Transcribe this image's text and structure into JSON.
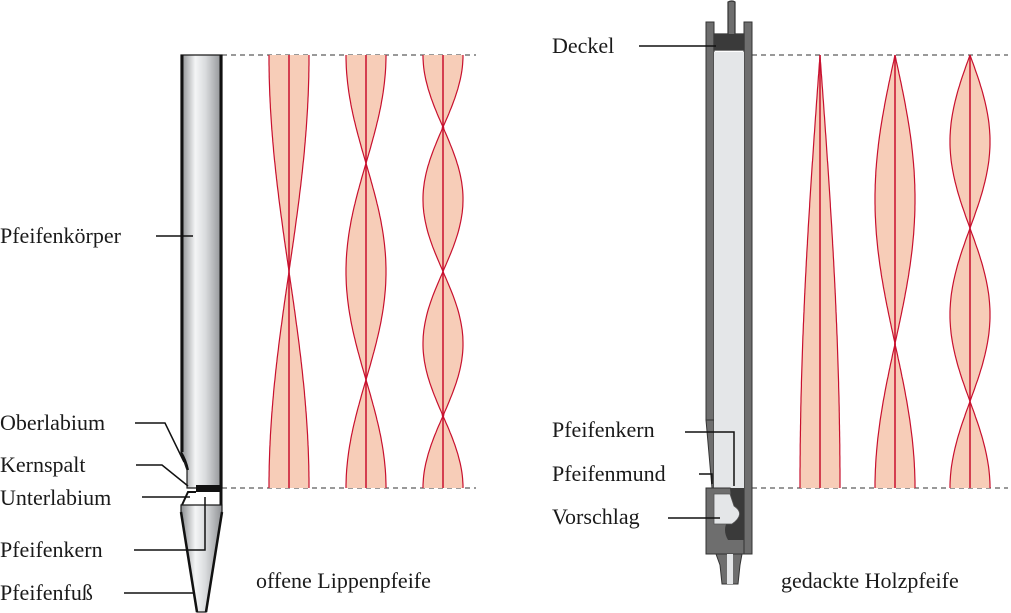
{
  "left_diagram": {
    "caption": "offene Lippenpfeife",
    "labels": {
      "body": "Pfeifenkörper",
      "upper_lip": "Oberlabium",
      "flue": "Kernspalt",
      "lower_lip": "Unterlabium",
      "languid": "Pfeifenkern",
      "foot": "Pfeifenfuß"
    }
  },
  "right_diagram": {
    "caption": "gedackte Holzpfeife",
    "labels": {
      "stopper": "Deckel",
      "block": "Pfeifenkern",
      "mouth": "Pfeifenmund",
      "cap": "Vorschlag"
    }
  },
  "colors": {
    "wave_line": "#c8102e",
    "wave_fill": "#f7cdb8",
    "pipe_wood": "#6e6e6e",
    "pipe_inner": "#e4e6e8",
    "outline": "#1a1a1a"
  },
  "modes": {
    "open_pipe": [
      1,
      2,
      3
    ],
    "stopped_pipe": [
      1,
      3,
      5
    ]
  }
}
